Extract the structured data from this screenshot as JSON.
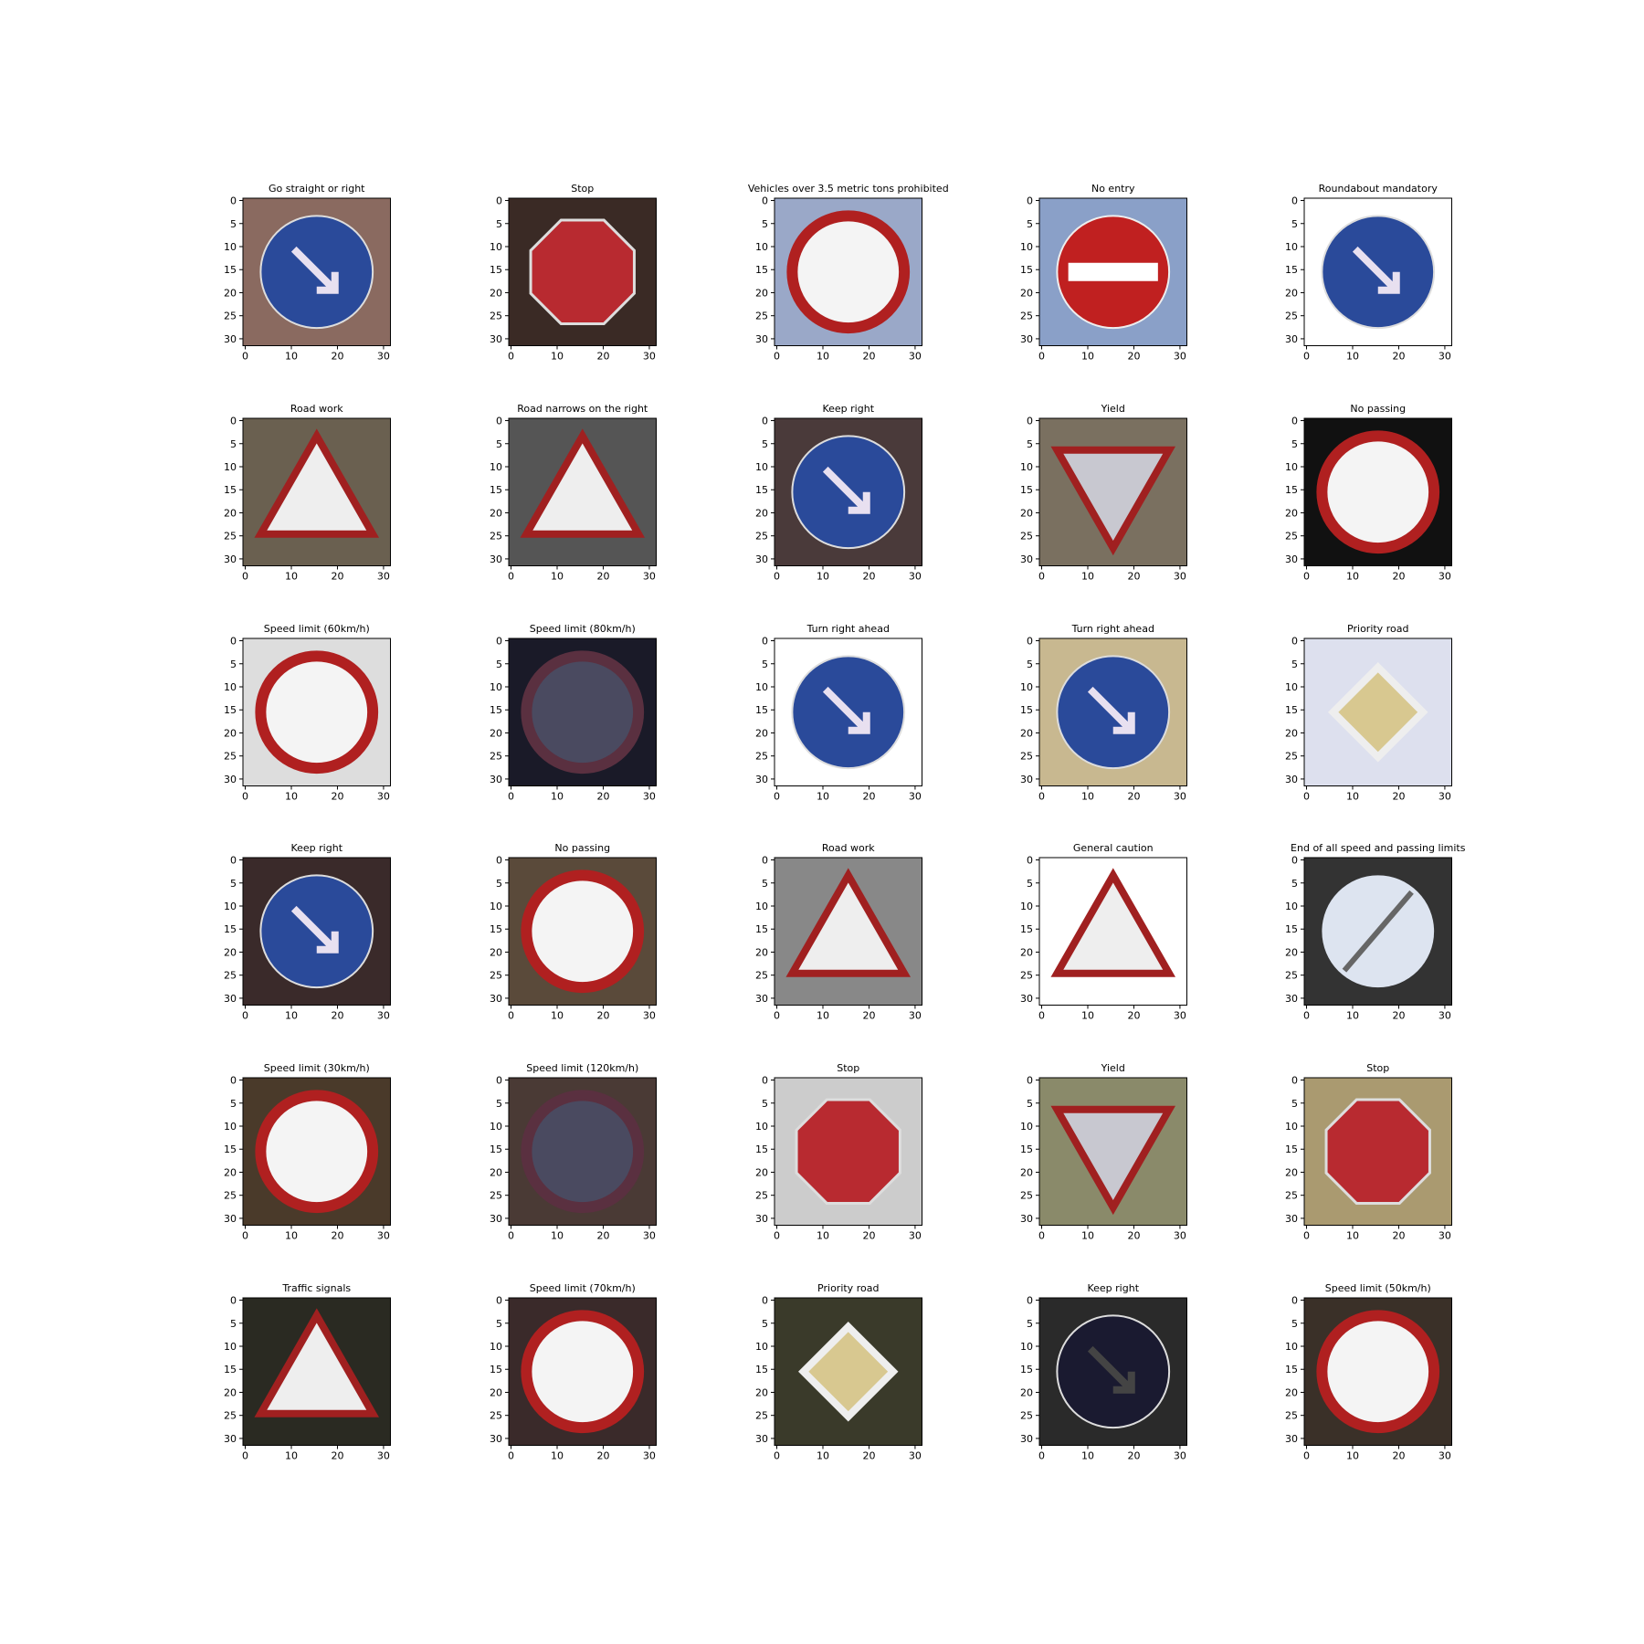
{
  "xticks": [
    0,
    10,
    20,
    30
  ],
  "yticks": [
    0,
    5,
    10,
    15,
    20,
    25,
    30
  ],
  "xlim": [
    -0.5,
    31.5
  ],
  "ylim": [
    31.5,
    -0.5
  ],
  "panels": [
    {
      "title": "Go straight or right"
    },
    {
      "title": "Stop"
    },
    {
      "title": "Vehicles over 3.5 metric tons prohibited"
    },
    {
      "title": "No entry"
    },
    {
      "title": "Roundabout mandatory"
    },
    {
      "title": "Road work"
    },
    {
      "title": "Road narrows on the right"
    },
    {
      "title": "Keep right"
    },
    {
      "title": "Yield"
    },
    {
      "title": "No passing"
    },
    {
      "title": "Speed limit (60km/h)"
    },
    {
      "title": "Speed limit (80km/h)"
    },
    {
      "title": "Turn right ahead"
    },
    {
      "title": "Turn right ahead"
    },
    {
      "title": "Priority road"
    },
    {
      "title": "Keep right"
    },
    {
      "title": "No passing"
    },
    {
      "title": "Road work"
    },
    {
      "title": "General caution"
    },
    {
      "title": "End of all speed and passing limits"
    },
    {
      "title": "Speed limit (30km/h)"
    },
    {
      "title": "Speed limit (120km/h)"
    },
    {
      "title": "Stop"
    },
    {
      "title": "Yield"
    },
    {
      "title": "Stop"
    },
    {
      "title": "Traffic signals"
    },
    {
      "title": "Speed limit (70km/h)"
    },
    {
      "title": "Priority road"
    },
    {
      "title": "Keep right"
    },
    {
      "title": "Speed limit (50km/h)"
    }
  ]
}
